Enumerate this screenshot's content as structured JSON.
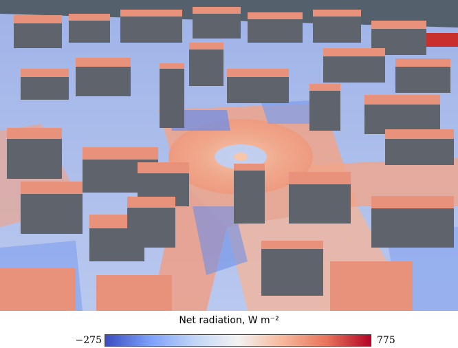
{
  "colorbar": {
    "title": "Net radiation, W m⁻²",
    "min_label": "−275",
    "max_label": "775",
    "colors": [
      "#3b4cc0",
      "#7b9ff9",
      "#c0d4f5",
      "#f2f2f2",
      "#f7b89c",
      "#e7745b",
      "#b40426"
    ]
  },
  "scene": {
    "roof_color": "#e8917b",
    "wall_color": "#60646c",
    "ground_shadow_color": "#6f8fe6",
    "ground_sun_color": "#f0a58a",
    "sky_color": "#55606d"
  }
}
